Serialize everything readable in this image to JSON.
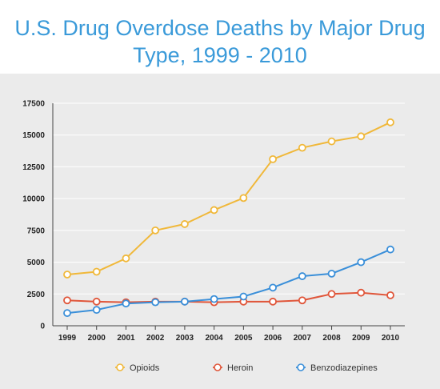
{
  "chart_data": {
    "type": "line",
    "title": "U.S. Drug Overdose Deaths by Major Drug Type, 1999 - 2010",
    "categories": [
      "1999",
      "2000",
      "2001",
      "2002",
      "2003",
      "2004",
      "2005",
      "2006",
      "2007",
      "2008",
      "2009",
      "2010"
    ],
    "ylim": [
      0,
      17500
    ],
    "yticks": [
      0,
      2500,
      5000,
      7500,
      10000,
      12500,
      15000,
      17500
    ],
    "grid": true,
    "legend_position": "bottom",
    "series": [
      {
        "name": "Opioids",
        "color": "#f0b83a",
        "values": [
          4030,
          4250,
          5300,
          7500,
          8000,
          9100,
          10050,
          13100,
          14000,
          14500,
          14900,
          16000
        ]
      },
      {
        "name": "Heroin",
        "color": "#e0563a",
        "values": [
          2000,
          1900,
          1850,
          1900,
          1900,
          1850,
          1900,
          1900,
          2000,
          2500,
          2600,
          2400
        ]
      },
      {
        "name": "Benzodiazepines",
        "color": "#3a8fd9",
        "values": [
          1000,
          1250,
          1750,
          1850,
          1900,
          2100,
          2300,
          3000,
          3900,
          4100,
          5000,
          6000
        ]
      }
    ]
  }
}
